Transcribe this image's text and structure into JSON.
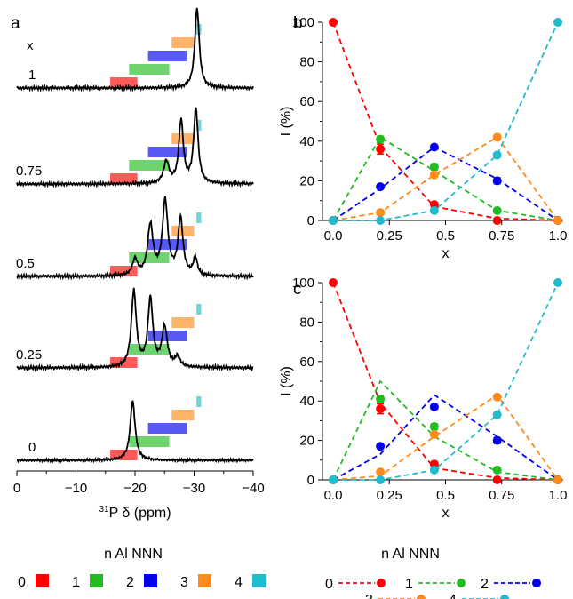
{
  "colors": {
    "n0": "#ff0000",
    "n1": "#22bb22",
    "n2": "#0000ee",
    "n3": "#ff8c1a",
    "n4": "#22bbcc",
    "axis": "#000000"
  },
  "legend": {
    "title": "n Al NNN",
    "items": [
      {
        "label": "0",
        "color": "#ff0000"
      },
      {
        "label": "1",
        "color": "#22bb22"
      },
      {
        "label": "2",
        "color": "#0000ee"
      },
      {
        "label": "3",
        "color": "#ff8c1a"
      },
      {
        "label": "4",
        "color": "#22bbcc"
      }
    ]
  },
  "chart_data": [
    {
      "panel": "a",
      "type": "line",
      "xlabel_prefix": "31",
      "xlabel": "P δ (ppm)",
      "xlim": [
        0,
        -40
      ],
      "xticks": [
        "0",
        "−10",
        "−20",
        "−30",
        "−40"
      ],
      "xtick_values": [
        0,
        -10,
        -20,
        -30,
        -40
      ],
      "column_header": "x",
      "spectra": [
        {
          "x": "1",
          "peaks": [
            [
              -30.5,
              1.0,
              0.45
            ]
          ]
        },
        {
          "x": "0.75",
          "peaks": [
            [
              -25.3,
              0.28,
              0.55
            ],
            [
              -27.8,
              0.8,
              0.45
            ],
            [
              -30.3,
              0.95,
              0.45
            ]
          ]
        },
        {
          "x": "0.5",
          "peaks": [
            [
              -20.0,
              0.2,
              0.5
            ],
            [
              -22.6,
              0.62,
              0.55
            ],
            [
              -25.1,
              0.92,
              0.55
            ],
            [
              -27.7,
              0.7,
              0.5
            ],
            [
              -30.2,
              0.22,
              0.4
            ]
          ]
        },
        {
          "x": "0.25",
          "peaks": [
            [
              -19.8,
              0.92,
              0.5
            ],
            [
              -22.6,
              0.82,
              0.5
            ],
            [
              -25.0,
              0.48,
              0.55
            ],
            [
              -27.2,
              0.12,
              0.5
            ]
          ]
        },
        {
          "x": "0",
          "peaks": [
            [
              -19.6,
              0.95,
              0.5
            ]
          ]
        }
      ],
      "shift_ranges": [
        {
          "n": 0,
          "range": [
            -15.8,
            -20.4
          ]
        },
        {
          "n": 1,
          "range": [
            -19.0,
            -25.8
          ]
        },
        {
          "n": 2,
          "range": [
            -22.2,
            -28.8
          ]
        },
        {
          "n": 3,
          "range": [
            -26.2,
            -30.0
          ]
        },
        {
          "n": 4,
          "range": [
            -30.4,
            -31.2
          ]
        }
      ]
    },
    {
      "panel": "b",
      "type": "scatter",
      "xlabel": "x",
      "ylabel": "I (%)",
      "xlim": [
        0,
        1
      ],
      "ylim": [
        0,
        100
      ],
      "xticks": [
        "0.0",
        "0.25",
        "0.5",
        "0.75",
        "1.0"
      ],
      "xtick_values": [
        0,
        0.25,
        0.5,
        0.75,
        1.0
      ],
      "yticks": [
        "0",
        "20",
        "40",
        "60",
        "80",
        "100"
      ],
      "ytick_values": [
        0,
        20,
        40,
        60,
        80,
        100
      ],
      "series": [
        {
          "n": 0,
          "points": [
            [
              0,
              100
            ],
            [
              0.21,
              36
            ],
            [
              0.45,
              8
            ],
            [
              0.73,
              0
            ],
            [
              1.0,
              0
            ]
          ],
          "errors": [
            0,
            2.5,
            1,
            0,
            0
          ],
          "line": [
            [
              0,
              100
            ],
            [
              0.21,
              37
            ],
            [
              0.45,
              7
            ],
            [
              0.73,
              1
            ],
            [
              1.0,
              0
            ]
          ]
        },
        {
          "n": 1,
          "points": [
            [
              0,
              0
            ],
            [
              0.21,
              41
            ],
            [
              0.45,
              27
            ],
            [
              0.73,
              5
            ],
            [
              1.0,
              0
            ]
          ],
          "errors": [
            0,
            1.5,
            1.5,
            1,
            0
          ],
          "line": [
            [
              0,
              0
            ],
            [
              0.21,
              42
            ],
            [
              0.45,
              25
            ],
            [
              0.73,
              5
            ],
            [
              1.0,
              0
            ]
          ]
        },
        {
          "n": 2,
          "points": [
            [
              0,
              0
            ],
            [
              0.21,
              17
            ],
            [
              0.45,
              37
            ],
            [
              0.73,
              20
            ],
            [
              1.0,
              0
            ]
          ],
          "errors": [
            0,
            1,
            1,
            1.5,
            0
          ],
          "line": [
            [
              0,
              0
            ],
            [
              0.21,
              16
            ],
            [
              0.45,
              37
            ],
            [
              0.73,
              21
            ],
            [
              1.0,
              0
            ]
          ]
        },
        {
          "n": 3,
          "points": [
            [
              0,
              0
            ],
            [
              0.21,
              4
            ],
            [
              0.45,
              23
            ],
            [
              0.73,
              42
            ],
            [
              1.0,
              0
            ]
          ],
          "errors": [
            0,
            1,
            1,
            1,
            0
          ],
          "line": [
            [
              0,
              0
            ],
            [
              0.21,
              4
            ],
            [
              0.45,
              23
            ],
            [
              0.73,
              42
            ],
            [
              1.0,
              0
            ]
          ]
        },
        {
          "n": 4,
          "points": [
            [
              0,
              0
            ],
            [
              0.21,
              0
            ],
            [
              0.45,
              5
            ],
            [
              0.73,
              33
            ],
            [
              1.0,
              100
            ]
          ],
          "errors": [
            0,
            0.5,
            1,
            1,
            0
          ],
          "line": [
            [
              0,
              0
            ],
            [
              0.21,
              0
            ],
            [
              0.45,
              5
            ],
            [
              0.73,
              33
            ],
            [
              1.0,
              100
            ]
          ]
        }
      ]
    },
    {
      "panel": "c",
      "type": "scatter",
      "xlabel": "x",
      "ylabel": "I (%)",
      "xlim": [
        0,
        1
      ],
      "ylim": [
        0,
        100
      ],
      "xticks": [
        "0.0",
        "0.25",
        "0.5",
        "0.75",
        "1.0"
      ],
      "xtick_values": [
        0,
        0.25,
        0.5,
        0.75,
        1.0
      ],
      "yticks": [
        "0",
        "20",
        "40",
        "60",
        "80",
        "100"
      ],
      "ytick_values": [
        0,
        20,
        40,
        60,
        80,
        100
      ],
      "series": [
        {
          "n": 0,
          "points": [
            [
              0,
              100
            ],
            [
              0.21,
              36
            ],
            [
              0.45,
              8
            ],
            [
              0.73,
              0
            ],
            [
              1.0,
              0
            ]
          ],
          "errors": [
            0,
            2.5,
            1,
            0,
            0
          ],
          "line": [
            [
              0,
              100
            ],
            [
              0.21,
              39
            ],
            [
              0.45,
              6
            ],
            [
              0.73,
              1
            ],
            [
              1.0,
              0
            ]
          ]
        },
        {
          "n": 1,
          "points": [
            [
              0,
              0
            ],
            [
              0.21,
              41
            ],
            [
              0.45,
              27
            ],
            [
              0.73,
              5
            ],
            [
              1.0,
              0
            ]
          ],
          "errors": [
            0,
            1.5,
            1.5,
            1,
            0
          ],
          "line": [
            [
              0,
              0
            ],
            [
              0.21,
              50
            ],
            [
              0.45,
              22
            ],
            [
              0.73,
              4
            ],
            [
              1.0,
              0
            ]
          ]
        },
        {
          "n": 2,
          "points": [
            [
              0,
              0
            ],
            [
              0.21,
              17
            ],
            [
              0.45,
              37
            ],
            [
              0.73,
              20
            ],
            [
              1.0,
              0
            ]
          ],
          "errors": [
            0,
            1,
            1,
            1.5,
            0
          ],
          "line": [
            [
              0,
              0
            ],
            [
              0.21,
              13
            ],
            [
              0.45,
              43
            ],
            [
              0.73,
              22
            ],
            [
              1.0,
              0
            ]
          ]
        },
        {
          "n": 3,
          "points": [
            [
              0,
              0
            ],
            [
              0.21,
              4
            ],
            [
              0.45,
              23
            ],
            [
              0.73,
              42
            ],
            [
              1.0,
              0
            ]
          ],
          "errors": [
            0,
            1,
            1,
            1,
            0
          ],
          "line": [
            [
              0,
              0
            ],
            [
              0.21,
              2
            ],
            [
              0.45,
              22
            ],
            [
              0.73,
              43
            ],
            [
              1.0,
              0
            ]
          ]
        },
        {
          "n": 4,
          "points": [
            [
              0,
              0
            ],
            [
              0.21,
              0
            ],
            [
              0.45,
              5
            ],
            [
              0.73,
              33
            ],
            [
              1.0,
              100
            ]
          ],
          "errors": [
            0,
            0.5,
            1,
            1,
            0
          ],
          "line": [
            [
              0,
              0
            ],
            [
              0.21,
              0
            ],
            [
              0.45,
              5
            ],
            [
              0.73,
              33
            ],
            [
              1.0,
              100
            ]
          ]
        }
      ]
    }
  ]
}
